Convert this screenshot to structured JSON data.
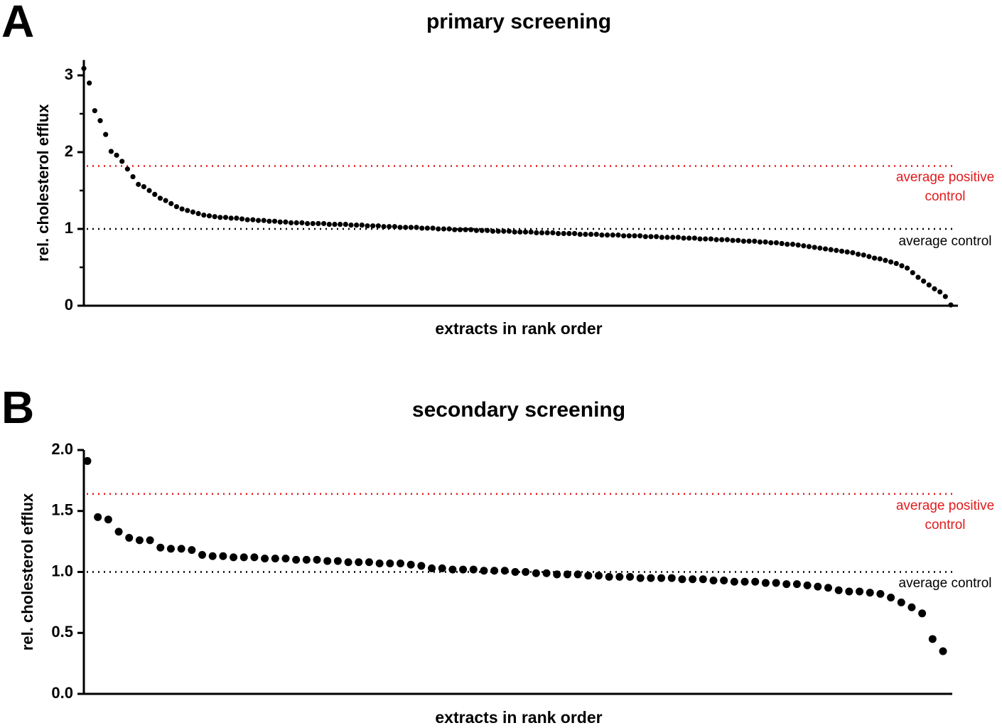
{
  "chart_data": [
    {
      "type": "scatter",
      "panel_label": "A",
      "title": "primary screening",
      "xlabel": "extracts in rank order",
      "ylabel": "rel. cholesterol efflux",
      "color": "#000000",
      "values": [
        3.09,
        2.9,
        2.54,
        2.41,
        2.23,
        2.01,
        1.96,
        1.88,
        1.78,
        1.68,
        1.58,
        1.55,
        1.5,
        1.45,
        1.4,
        1.37,
        1.33,
        1.29,
        1.26,
        1.24,
        1.22,
        1.2,
        1.18,
        1.17,
        1.16,
        1.15,
        1.15,
        1.14,
        1.14,
        1.13,
        1.12,
        1.12,
        1.11,
        1.11,
        1.1,
        1.1,
        1.09,
        1.09,
        1.08,
        1.08,
        1.08,
        1.07,
        1.07,
        1.07,
        1.07,
        1.06,
        1.06,
        1.06,
        1.06,
        1.05,
        1.05,
        1.05,
        1.04,
        1.04,
        1.04,
        1.03,
        1.03,
        1.03,
        1.02,
        1.02,
        1.02,
        1.02,
        1.01,
        1.01,
        1.01,
        1.0,
        1.0,
        1.0,
        0.99,
        0.99,
        0.99,
        0.99,
        0.98,
        0.98,
        0.98,
        0.97,
        0.97,
        0.97,
        0.97,
        0.96,
        0.96,
        0.96,
        0.96,
        0.95,
        0.95,
        0.95,
        0.95,
        0.94,
        0.94,
        0.94,
        0.94,
        0.93,
        0.93,
        0.93,
        0.93,
        0.92,
        0.92,
        0.92,
        0.92,
        0.91,
        0.91,
        0.91,
        0.91,
        0.9,
        0.9,
        0.9,
        0.89,
        0.89,
        0.89,
        0.89,
        0.88,
        0.88,
        0.88,
        0.87,
        0.87,
        0.87,
        0.86,
        0.86,
        0.86,
        0.85,
        0.85,
        0.84,
        0.84,
        0.84,
        0.83,
        0.83,
        0.82,
        0.82,
        0.81,
        0.8,
        0.8,
        0.79,
        0.78,
        0.77,
        0.76,
        0.75,
        0.74,
        0.73,
        0.72,
        0.71,
        0.7,
        0.69,
        0.67,
        0.66,
        0.64,
        0.62,
        0.61,
        0.59,
        0.57,
        0.55,
        0.52,
        0.49,
        0.43,
        0.37,
        0.32,
        0.27,
        0.22,
        0.18,
        0.12,
        0.01
      ],
      "ylim": [
        0,
        3.2
      ],
      "yticks": [
        0,
        1,
        2,
        3
      ],
      "yminorticks": [
        0.5,
        1.5,
        2.5
      ],
      "reference_lines": [
        {
          "value": 1.82,
          "label": "average positive control",
          "color": "#e31a1c"
        },
        {
          "value": 1,
          "label": "average control",
          "color": "#000000"
        }
      ]
    },
    {
      "type": "scatter",
      "panel_label": "B",
      "title": "secondary screening",
      "xlabel": "extracts in rank order",
      "ylabel": "rel. cholesterol efflux",
      "color": "#000000",
      "values": [
        1.91,
        1.45,
        1.43,
        1.33,
        1.28,
        1.26,
        1.26,
        1.2,
        1.19,
        1.19,
        1.18,
        1.14,
        1.13,
        1.13,
        1.12,
        1.12,
        1.12,
        1.11,
        1.11,
        1.11,
        1.1,
        1.1,
        1.1,
        1.09,
        1.09,
        1.08,
        1.08,
        1.08,
        1.07,
        1.07,
        1.07,
        1.06,
        1.05,
        1.03,
        1.03,
        1.02,
        1.02,
        1.02,
        1.01,
        1.01,
        1.01,
        1.0,
        1.0,
        0.99,
        0.99,
        0.98,
        0.98,
        0.98,
        0.97,
        0.97,
        0.96,
        0.96,
        0.96,
        0.95,
        0.95,
        0.95,
        0.95,
        0.94,
        0.94,
        0.94,
        0.93,
        0.93,
        0.92,
        0.92,
        0.92,
        0.91,
        0.91,
        0.9,
        0.9,
        0.89,
        0.88,
        0.87,
        0.85,
        0.84,
        0.84,
        0.83,
        0.82,
        0.79,
        0.75,
        0.71,
        0.66,
        0.45,
        0.35
      ],
      "ylim": [
        0,
        2
      ],
      "yticks": [
        {
          "value": 0,
          "label": "0.0"
        },
        0.5,
        {
          "value": 1,
          "label": "1.0"
        },
        1.5,
        {
          "value": 2,
          "label": "2.0"
        }
      ],
      "reference_lines": [
        {
          "value": 1.64,
          "label": "average positive control",
          "color": "#e31a1c"
        },
        {
          "value": 1,
          "label": "average control",
          "color": "#000000"
        }
      ]
    }
  ]
}
